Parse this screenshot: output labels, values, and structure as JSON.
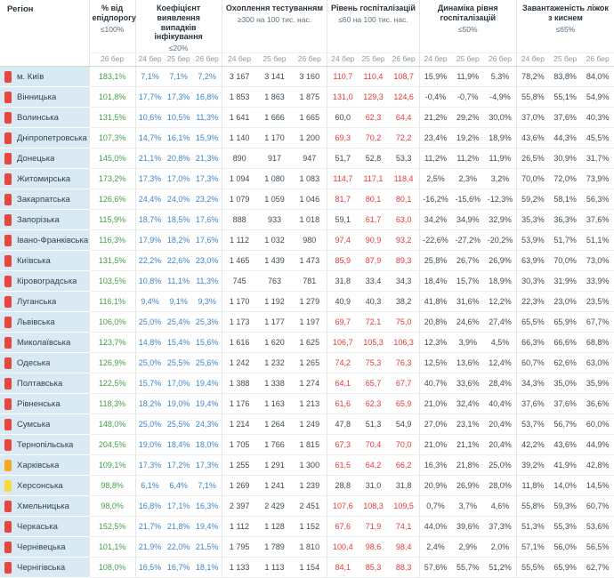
{
  "table": {
    "region_header": "Регіон",
    "hosp_threshold": 60,
    "colors": {
      "value_green": "#43a047",
      "value_blue": "#3d85c8",
      "value_red": "#e53935",
      "value_dark": "#3c4a54",
      "indicator_red": "#e8473f",
      "indicator_orange": "#f5a623",
      "indicator_yellow": "#f7d83d",
      "region_bg": "#d9eaf5"
    },
    "groups": [
      {
        "key": "epid-threshold",
        "title": "% від епідпорогу",
        "threshold": "≤100%",
        "dates": [
          "26 бер"
        ],
        "col_class": "col-epid",
        "cell_class": "c-epid",
        "cell_name": "epid-value"
      },
      {
        "key": "detection-rate",
        "title": "Коефіцієнт виявлення випадків інфікування",
        "threshold": "≤20%",
        "dates": [
          "24 бер",
          "25 бер",
          "26 бер"
        ],
        "col_class": "col-detection",
        "cell_class": "c-detection",
        "cell_name": "detection-value"
      },
      {
        "key": "testing-coverage",
        "title": "Охоплення тестуванням",
        "threshold": "≥300 на 100 тис. нас.",
        "dates": [
          "24 бер",
          "25 бер",
          "26 бер"
        ],
        "col_class": "col-testing",
        "cell_class": "c-testing",
        "cell_name": "testing-value"
      },
      {
        "key": "hospitalization-level",
        "title": "Рівень госпіталізацій",
        "threshold": "≤60 на 100 тис. нас.",
        "dates": [
          "24 бер",
          "25 бер",
          "26 бер"
        ],
        "col_class": "col-hosp",
        "cell_class": "c-hosp",
        "cell_name": "hospitalization-value"
      },
      {
        "key": "hospitalization-dynamics",
        "title": "Динаміка рівня госпіталізацій",
        "threshold": "≤50%",
        "dates": [
          "24 бер",
          "25 бер",
          "26 бер"
        ],
        "col_class": "col-dynamics",
        "cell_class": "c-dynamics",
        "cell_name": "hospitalization-dynamics-value"
      },
      {
        "key": "oxygen-beds-load",
        "title": "Завантаженість ліжок з киснем",
        "threshold": "≤65%",
        "dates": [
          "24 бер",
          "25 бер",
          "26 бер"
        ],
        "col_class": "col-load",
        "cell_class": "c-load",
        "cell_name": "oxygen-beds-load-value"
      }
    ],
    "rows": [
      {
        "region": "м. Київ",
        "level": "red",
        "epid": "183,1%",
        "detection": [
          "7,1%",
          "7,1%",
          "7,2%"
        ],
        "testing": [
          "3 167",
          "3 141",
          "3 160"
        ],
        "hosp": [
          "110,7",
          "110,4",
          "108,7"
        ],
        "dynamics": [
          "15,9%",
          "11,9%",
          "5,3%"
        ],
        "load": [
          "78,2%",
          "83,8%",
          "84,0%"
        ]
      },
      {
        "region": "Вінницька",
        "level": "red",
        "epid": "101,8%",
        "detection": [
          "17,7%",
          "17,3%",
          "16,8%"
        ],
        "testing": [
          "1 853",
          "1 863",
          "1 875"
        ],
        "hosp": [
          "131,0",
          "129,3",
          "124,6"
        ],
        "dynamics": [
          "-0,4%",
          "-0,7%",
          "-4,9%"
        ],
        "load": [
          "55,8%",
          "55,1%",
          "54,9%"
        ]
      },
      {
        "region": "Волинська",
        "level": "red",
        "epid": "131,5%",
        "detection": [
          "10,6%",
          "10,5%",
          "11,3%"
        ],
        "testing": [
          "1 641",
          "1 666",
          "1 665"
        ],
        "hosp": [
          "60,0",
          "62,3",
          "64,4"
        ],
        "dynamics": [
          "21,2%",
          "29,2%",
          "30,0%"
        ],
        "load": [
          "37,0%",
          "37,6%",
          "40,3%"
        ]
      },
      {
        "region": "Дніпропетровська",
        "level": "red",
        "epid": "107,3%",
        "detection": [
          "14,7%",
          "16,1%",
          "15,9%"
        ],
        "testing": [
          "1 140",
          "1 170",
          "1 200"
        ],
        "hosp": [
          "69,3",
          "70,2",
          "72,2"
        ],
        "dynamics": [
          "23,4%",
          "19,2%",
          "18,9%"
        ],
        "load": [
          "43,6%",
          "44,3%",
          "45,5%"
        ]
      },
      {
        "region": "Донецька",
        "level": "red",
        "epid": "145,0%",
        "detection": [
          "21,1%",
          "20,8%",
          "21,3%"
        ],
        "testing": [
          "890",
          "917",
          "947"
        ],
        "hosp": [
          "51,7",
          "52,8",
          "53,3"
        ],
        "dynamics": [
          "11,2%",
          "11,2%",
          "11,9%"
        ],
        "load": [
          "26,5%",
          "30,9%",
          "31,7%"
        ]
      },
      {
        "region": "Житомирська",
        "level": "red",
        "epid": "173,2%",
        "detection": [
          "17,3%",
          "17,0%",
          "17,3%"
        ],
        "testing": [
          "1 094",
          "1 080",
          "1 083"
        ],
        "hosp": [
          "114,7",
          "117,1",
          "118,4"
        ],
        "dynamics": [
          "2,5%",
          "2,3%",
          "3,2%"
        ],
        "load": [
          "70,0%",
          "72,0%",
          "73,9%"
        ]
      },
      {
        "region": "Закарпатська",
        "level": "red",
        "epid": "126,6%",
        "detection": [
          "24,4%",
          "24,0%",
          "23,2%"
        ],
        "testing": [
          "1 079",
          "1 059",
          "1 046"
        ],
        "hosp": [
          "81,7",
          "80,1",
          "80,1"
        ],
        "dynamics": [
          "-16,2%",
          "-15,6%",
          "-12,3%"
        ],
        "load": [
          "59,2%",
          "58,1%",
          "56,3%"
        ]
      },
      {
        "region": "Запорізька",
        "level": "red",
        "epid": "115,9%",
        "detection": [
          "18,7%",
          "18,5%",
          "17,6%"
        ],
        "testing": [
          "888",
          "933",
          "1 018"
        ],
        "hosp": [
          "59,1",
          "61,7",
          "63,0"
        ],
        "dynamics": [
          "34,2%",
          "34,9%",
          "32,9%"
        ],
        "load": [
          "35,3%",
          "36,3%",
          "37,6%"
        ]
      },
      {
        "region": "Івано-Франківська",
        "level": "red",
        "epid": "116,3%",
        "detection": [
          "17,9%",
          "18,2%",
          "17,6%"
        ],
        "testing": [
          "1 112",
          "1 032",
          "980"
        ],
        "hosp": [
          "97,4",
          "90,9",
          "93,2"
        ],
        "dynamics": [
          "-22,6%",
          "-27,2%",
          "-20,2%"
        ],
        "load": [
          "53,9%",
          "51,7%",
          "51,1%"
        ]
      },
      {
        "region": "Київська",
        "level": "red",
        "epid": "131,5%",
        "detection": [
          "22,2%",
          "22,6%",
          "23,0%"
        ],
        "testing": [
          "1 465",
          "1 439",
          "1 473"
        ],
        "hosp": [
          "85,9",
          "87,9",
          "89,3"
        ],
        "dynamics": [
          "25,8%",
          "26,7%",
          "26,9%"
        ],
        "load": [
          "63,9%",
          "70,0%",
          "73,0%"
        ]
      },
      {
        "region": "Кіровоградська",
        "level": "red",
        "epid": "103,5%",
        "detection": [
          "10,8%",
          "11,1%",
          "11,3%"
        ],
        "testing": [
          "745",
          "763",
          "781"
        ],
        "hosp": [
          "31,8",
          "33,4",
          "34,3"
        ],
        "dynamics": [
          "18,4%",
          "15,7%",
          "18,9%"
        ],
        "load": [
          "30,3%",
          "31,9%",
          "33,9%"
        ]
      },
      {
        "region": "Луганська",
        "level": "red",
        "epid": "116,1%",
        "detection": [
          "9,4%",
          "9,1%",
          "9,3%"
        ],
        "testing": [
          "1 170",
          "1 192",
          "1 279"
        ],
        "hosp": [
          "40,9",
          "40,3",
          "38,2"
        ],
        "dynamics": [
          "41,8%",
          "31,6%",
          "12,2%"
        ],
        "load": [
          "22,3%",
          "23,0%",
          "23,5%"
        ]
      },
      {
        "region": "Львівська",
        "level": "red",
        "epid": "106,0%",
        "detection": [
          "25,0%",
          "25,4%",
          "25,3%"
        ],
        "testing": [
          "1 173",
          "1 177",
          "1 197"
        ],
        "hosp": [
          "69,7",
          "72,1",
          "75,0"
        ],
        "dynamics": [
          "20,8%",
          "24,6%",
          "27,4%"
        ],
        "load": [
          "65,5%",
          "65,9%",
          "67,7%"
        ]
      },
      {
        "region": "Миколаївська",
        "level": "red",
        "epid": "123,7%",
        "detection": [
          "14,8%",
          "15,4%",
          "15,6%"
        ],
        "testing": [
          "1 616",
          "1 620",
          "1 625"
        ],
        "hosp": [
          "106,7",
          "105,3",
          "106,3"
        ],
        "dynamics": [
          "12,3%",
          "3,9%",
          "4,5%"
        ],
        "load": [
          "66,3%",
          "66,6%",
          "68,8%"
        ]
      },
      {
        "region": "Одеська",
        "level": "red",
        "epid": "126,9%",
        "detection": [
          "25,0%",
          "25,5%",
          "25,6%"
        ],
        "testing": [
          "1 242",
          "1 232",
          "1 265"
        ],
        "hosp": [
          "74,2",
          "75,3",
          "76,3"
        ],
        "dynamics": [
          "12,5%",
          "13,6%",
          "12,4%"
        ],
        "load": [
          "60,7%",
          "62,6%",
          "63,0%"
        ]
      },
      {
        "region": "Полтавська",
        "level": "red",
        "epid": "122,5%",
        "detection": [
          "15,7%",
          "17,0%",
          "19,4%"
        ],
        "testing": [
          "1 388",
          "1 338",
          "1 274"
        ],
        "hosp": [
          "64,1",
          "65,7",
          "67,7"
        ],
        "dynamics": [
          "40,7%",
          "33,6%",
          "28,4%"
        ],
        "load": [
          "34,3%",
          "35,0%",
          "35,9%"
        ]
      },
      {
        "region": "Рівненська",
        "level": "red",
        "epid": "118,3%",
        "detection": [
          "18,2%",
          "19,0%",
          "19,4%"
        ],
        "testing": [
          "1 176",
          "1 163",
          "1 213"
        ],
        "hosp": [
          "61,6",
          "62,3",
          "65,9"
        ],
        "dynamics": [
          "21,0%",
          "32,4%",
          "40,4%"
        ],
        "load": [
          "37,6%",
          "37,6%",
          "36,6%"
        ]
      },
      {
        "region": "Сумська",
        "level": "red",
        "epid": "148,0%",
        "detection": [
          "25,0%",
          "25,5%",
          "24,3%"
        ],
        "testing": [
          "1 214",
          "1 264",
          "1 249"
        ],
        "hosp": [
          "47,8",
          "51,3",
          "54,9"
        ],
        "dynamics": [
          "27,0%",
          "23,1%",
          "20,4%"
        ],
        "load": [
          "53,7%",
          "56,7%",
          "60,0%"
        ]
      },
      {
        "region": "Тернопільська",
        "level": "red",
        "epid": "204,5%",
        "detection": [
          "19,0%",
          "18,4%",
          "18,0%"
        ],
        "testing": [
          "1 705",
          "1 766",
          "1 815"
        ],
        "hosp": [
          "67,3",
          "70,4",
          "70,0"
        ],
        "dynamics": [
          "21,0%",
          "21,1%",
          "20,4%"
        ],
        "load": [
          "42,2%",
          "43,6%",
          "44,9%"
        ]
      },
      {
        "region": "Харківська",
        "level": "orange",
        "epid": "109,1%",
        "detection": [
          "17,3%",
          "17,2%",
          "17,3%"
        ],
        "testing": [
          "1 255",
          "1 291",
          "1 300"
        ],
        "hosp": [
          "61,5",
          "64,2",
          "66,2"
        ],
        "dynamics": [
          "16,3%",
          "21,8%",
          "25,0%"
        ],
        "load": [
          "39,2%",
          "41,9%",
          "42,8%"
        ]
      },
      {
        "region": "Херсонська",
        "level": "yellow",
        "epid": "98,8%",
        "detection": [
          "6,1%",
          "6,4%",
          "7,1%"
        ],
        "testing": [
          "1 269",
          "1 241",
          "1 239"
        ],
        "hosp": [
          "28,8",
          "31,0",
          "31,8"
        ],
        "dynamics": [
          "20,9%",
          "26,9%",
          "28,0%"
        ],
        "load": [
          "11,8%",
          "14,0%",
          "14,5%"
        ]
      },
      {
        "region": "Хмельницька",
        "level": "red",
        "epid": "98,0%",
        "detection": [
          "16,8%",
          "17,1%",
          "16,3%"
        ],
        "testing": [
          "2 397",
          "2 429",
          "2 451"
        ],
        "hosp": [
          "107,6",
          "108,3",
          "109,5"
        ],
        "dynamics": [
          "0,7%",
          "3,7%",
          "4,6%"
        ],
        "load": [
          "55,8%",
          "59,3%",
          "60,7%"
        ]
      },
      {
        "region": "Черкаська",
        "level": "red",
        "epid": "152,5%",
        "detection": [
          "21,7%",
          "21,8%",
          "19,4%"
        ],
        "testing": [
          "1 112",
          "1 128",
          "1 152"
        ],
        "hosp": [
          "67,6",
          "71,9",
          "74,1"
        ],
        "dynamics": [
          "44,0%",
          "39,6%",
          "37,3%"
        ],
        "load": [
          "51,3%",
          "55,3%",
          "53,6%"
        ]
      },
      {
        "region": "Чернівецька",
        "level": "red",
        "epid": "101,1%",
        "detection": [
          "21,9%",
          "22,0%",
          "21,5%"
        ],
        "testing": [
          "1 795",
          "1 789",
          "1 810"
        ],
        "hosp": [
          "100,4",
          "98,6",
          "98,4"
        ],
        "dynamics": [
          "2,4%",
          "2,9%",
          "2,0%"
        ],
        "load": [
          "57,1%",
          "56,0%",
          "56,5%"
        ]
      },
      {
        "region": "Чернігівська",
        "level": "red",
        "epid": "108,0%",
        "detection": [
          "16,5%",
          "16,7%",
          "18,1%"
        ],
        "testing": [
          "1 133",
          "1 113",
          "1 154"
        ],
        "hosp": [
          "84,1",
          "85,3",
          "88,3"
        ],
        "dynamics": [
          "57,6%",
          "55,7%",
          "51,2%"
        ],
        "load": [
          "55,5%",
          "65,9%",
          "62,7%"
        ]
      }
    ]
  }
}
